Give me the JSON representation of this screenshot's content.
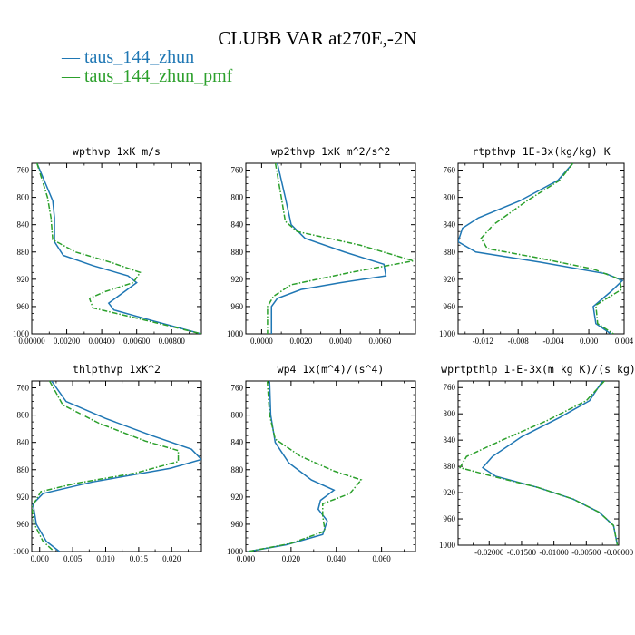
{
  "title": "CLUBB VAR at270E,-2N",
  "legend": [
    {
      "label": "taus_144_zhun",
      "color": "#1f77b4",
      "dash": "solid"
    },
    {
      "label": "taus_144_zhun_pmf",
      "color": "#2ca02c",
      "dash": "dashdot"
    }
  ],
  "chart_data": [
    {
      "type": "line",
      "title": "wpthvp  1xK m/s",
      "xlim": [
        0,
        0.0097
      ],
      "ylim": [
        750,
        1000
      ],
      "x_ticks": [
        "0.00000",
        "0.00200",
        "0.00400",
        "0.00600",
        "0.00800"
      ],
      "x_tick_values": [
        0,
        0.002,
        0.004,
        0.006,
        0.008
      ],
      "y_ticks": [
        "760",
        "800",
        "840",
        "880",
        "920",
        "960",
        "1000"
      ],
      "y_tick_values": [
        760,
        800,
        840,
        880,
        920,
        960,
        1000
      ],
      "series": [
        {
          "name": "taus_144_zhun",
          "color": "#1f77b4",
          "points": [
            [
              0.0003,
              750
            ],
            [
              0.0012,
              805
            ],
            [
              0.0013,
              830
            ],
            [
              0.0013,
              865
            ],
            [
              0.0018,
              885
            ],
            [
              0.0035,
              900
            ],
            [
              0.0055,
              915
            ],
            [
              0.006,
              925
            ],
            [
              0.0052,
              940
            ],
            [
              0.0044,
              955
            ],
            [
              0.0047,
              965
            ],
            [
              0.0068,
              980
            ],
            [
              0.0097,
              1000
            ]
          ]
        },
        {
          "name": "taus_144_zhun_pmf",
          "color": "#2ca02c",
          "points": [
            [
              0.0003,
              750
            ],
            [
              0.0009,
              800
            ],
            [
              0.0011,
              830
            ],
            [
              0.0012,
              862
            ],
            [
              0.0025,
              880
            ],
            [
              0.0045,
              895
            ],
            [
              0.0062,
              910
            ],
            [
              0.0058,
              925
            ],
            [
              0.0042,
              938
            ],
            [
              0.0033,
              948
            ],
            [
              0.0035,
              962
            ],
            [
              0.0065,
              980
            ],
            [
              0.0097,
              1000
            ]
          ]
        }
      ]
    },
    {
      "type": "line",
      "title": "wp2thvp  1xK m^2/s^2",
      "xlim": [
        -0.0008,
        0.0078
      ],
      "ylim": [
        750,
        1000
      ],
      "x_ticks": [
        "0.0000",
        "0.0020",
        "0.0040",
        "0.0060"
      ],
      "x_tick_values": [
        0,
        0.002,
        0.004,
        0.006
      ],
      "y_ticks": [
        "760",
        "800",
        "840",
        "880",
        "920",
        "960",
        "1000"
      ],
      "y_tick_values": [
        760,
        800,
        840,
        880,
        920,
        960,
        1000
      ],
      "series": [
        {
          "name": "taus_144_zhun",
          "color": "#1f77b4",
          "points": [
            [
              0.0008,
              750
            ],
            [
              0.0012,
              800
            ],
            [
              0.0015,
              840
            ],
            [
              0.0022,
              860
            ],
            [
              0.0042,
              880
            ],
            [
              0.0062,
              898
            ],
            [
              0.0063,
              915
            ],
            [
              0.004,
              925
            ],
            [
              0.002,
              935
            ],
            [
              0.0008,
              948
            ],
            [
              0.0005,
              960
            ],
            [
              0.0005,
              1000
            ]
          ]
        },
        {
          "name": "taus_144_zhun_pmf",
          "color": "#2ca02c",
          "points": [
            [
              0.0007,
              750
            ],
            [
              0.001,
              800
            ],
            [
              0.0012,
              835
            ],
            [
              0.0018,
              850
            ],
            [
              0.005,
              870
            ],
            [
              0.0077,
              893
            ],
            [
              0.0045,
              910
            ],
            [
              0.0015,
              928
            ],
            [
              0.0006,
              945
            ],
            [
              0.0003,
              960
            ],
            [
              0.0003,
              1000
            ]
          ]
        }
      ]
    },
    {
      "type": "line",
      "title": "rtpthvp  1E-3x(kg/kg) K",
      "xlim": [
        -0.0148,
        0.004
      ],
      "ylim": [
        750,
        1000
      ],
      "x_ticks": [
        "-0.012",
        "-0.008",
        "-0.004",
        "0.000",
        "0.004"
      ],
      "x_tick_values": [
        -0.012,
        -0.008,
        -0.004,
        0,
        0.004
      ],
      "y_ticks": [
        "760",
        "800",
        "840",
        "880",
        "920",
        "960",
        "1000"
      ],
      "y_tick_values": [
        760,
        800,
        840,
        880,
        920,
        960,
        1000
      ],
      "series": [
        {
          "name": "taus_144_zhun",
          "color": "#1f77b4",
          "points": [
            [
              -0.0018,
              750
            ],
            [
              -0.0035,
              775
            ],
            [
              -0.0078,
              805
            ],
            [
              -0.0125,
              830
            ],
            [
              -0.0143,
              845
            ],
            [
              -0.0148,
              865
            ],
            [
              -0.0128,
              880
            ],
            [
              -0.0055,
              895
            ],
            [
              0.002,
              912
            ],
            [
              0.0038,
              922
            ],
            [
              0.0025,
              938
            ],
            [
              0.0005,
              960
            ],
            [
              0.0008,
              985
            ],
            [
              0.0025,
              1000
            ]
          ]
        },
        {
          "name": "taus_144_zhun_pmf",
          "color": "#2ca02c",
          "points": [
            [
              -0.0018,
              750
            ],
            [
              -0.0033,
              775
            ],
            [
              -0.007,
              805
            ],
            [
              -0.0108,
              840
            ],
            [
              -0.0122,
              860
            ],
            [
              -0.0115,
              875
            ],
            [
              -0.006,
              888
            ],
            [
              0.0005,
              905
            ],
            [
              0.0035,
              920
            ],
            [
              0.0037,
              935
            ],
            [
              0.0008,
              958
            ],
            [
              0.001,
              985
            ],
            [
              0.0028,
              1000
            ]
          ]
        }
      ]
    },
    {
      "type": "line",
      "title": "thlpthvp  1xK^2",
      "xlim": [
        -0.0012,
        0.0245
      ],
      "ylim": [
        750,
        1000
      ],
      "x_ticks": [
        "0.000",
        "0.005",
        "0.010",
        "0.015",
        "0.020"
      ],
      "x_tick_values": [
        0,
        0.005,
        0.01,
        0.015,
        0.02
      ],
      "y_ticks": [
        "760",
        "800",
        "840",
        "880",
        "920",
        "960",
        "1000"
      ],
      "y_tick_values": [
        760,
        800,
        840,
        880,
        920,
        960,
        1000
      ],
      "series": [
        {
          "name": "taus_144_zhun",
          "color": "#1f77b4",
          "points": [
            [
              0.0018,
              750
            ],
            [
              0.004,
              780
            ],
            [
              0.01,
              805
            ],
            [
              0.017,
              830
            ],
            [
              0.023,
              850
            ],
            [
              0.0245,
              865
            ],
            [
              0.0198,
              878
            ],
            [
              0.008,
              898
            ],
            [
              0.0005,
              915
            ],
            [
              -0.001,
              930
            ],
            [
              -0.0005,
              960
            ],
            [
              0.001,
              985
            ],
            [
              0.003,
              1000
            ]
          ]
        },
        {
          "name": "taus_144_zhun_pmf",
          "color": "#2ca02c",
          "points": [
            [
              0.0015,
              750
            ],
            [
              0.0035,
              785
            ],
            [
              0.009,
              812
            ],
            [
              0.016,
              838
            ],
            [
              0.021,
              852
            ],
            [
              0.021,
              868
            ],
            [
              0.0145,
              885
            ],
            [
              0.0055,
              900
            ],
            [
              0.0002,
              912
            ],
            [
              -0.0012,
              935
            ],
            [
              -0.0008,
              960
            ],
            [
              0.0005,
              985
            ],
            [
              0.0022,
              1000
            ]
          ]
        }
      ]
    },
    {
      "type": "line",
      "title": "wp4  1x(m^4)/(s^4)",
      "xlim": [
        0,
        0.075
      ],
      "ylim": [
        750,
        1000
      ],
      "x_ticks": [
        "0.000",
        "0.020",
        "0.040",
        "0.060"
      ],
      "x_tick_values": [
        0,
        0.02,
        0.04,
        0.06
      ],
      "y_ticks": [
        "760",
        "800",
        "840",
        "880",
        "920",
        "960",
        "1000"
      ],
      "y_tick_values": [
        760,
        800,
        840,
        880,
        920,
        960,
        1000
      ],
      "series": [
        {
          "name": "taus_144_zhun",
          "color": "#1f77b4",
          "points": [
            [
              0.0105,
              750
            ],
            [
              0.011,
              800
            ],
            [
              0.013,
              840
            ],
            [
              0.019,
              870
            ],
            [
              0.029,
              895
            ],
            [
              0.039,
              910
            ],
            [
              0.033,
              925
            ],
            [
              0.032,
              938
            ],
            [
              0.036,
              955
            ],
            [
              0.034,
              975
            ],
            [
              0.018,
              990
            ],
            [
              0.001,
              1000
            ]
          ]
        },
        {
          "name": "taus_144_zhun_pmf",
          "color": "#2ca02c",
          "points": [
            [
              0.0095,
              750
            ],
            [
              0.0105,
              800
            ],
            [
              0.013,
              835
            ],
            [
              0.024,
              860
            ],
            [
              0.039,
              882
            ],
            [
              0.051,
              895
            ],
            [
              0.046,
              915
            ],
            [
              0.034,
              930
            ],
            [
              0.034,
              948
            ],
            [
              0.035,
              970
            ],
            [
              0.02,
              988
            ],
            [
              0.001,
              1000
            ]
          ]
        }
      ]
    },
    {
      "type": "line",
      "title": "wprtpthlp  1-E-3x(m kg K)/(s kg)",
      "xlim": [
        -0.0248,
        0
      ],
      "ylim": [
        750,
        1000
      ],
      "x_ticks": [
        "-0.02000",
        "-0.01500",
        "-0.01000",
        "-0.00500",
        "-0.00000"
      ],
      "x_tick_values": [
        -0.02,
        -0.015,
        -0.01,
        -0.005,
        0
      ],
      "y_ticks": [
        "760",
        "800",
        "840",
        "880",
        "920",
        "960",
        "1000"
      ],
      "y_tick_values": [
        760,
        800,
        840,
        880,
        920,
        960,
        1000
      ],
      "series": [
        {
          "name": "taus_144_zhun",
          "color": "#1f77b4",
          "points": [
            [
              -0.0025,
              750
            ],
            [
              -0.0045,
              780
            ],
            [
              -0.009,
              805
            ],
            [
              -0.015,
              835
            ],
            [
              -0.0195,
              865
            ],
            [
              -0.021,
              882
            ],
            [
              -0.019,
              895
            ],
            [
              -0.0125,
              912
            ],
            [
              -0.007,
              930
            ],
            [
              -0.003,
              950
            ],
            [
              -0.0008,
              970
            ],
            [
              -0.0002,
              1000
            ]
          ]
        },
        {
          "name": "taus_144_zhun_pmf",
          "color": "#2ca02c",
          "points": [
            [
              -0.0022,
              750
            ],
            [
              -0.005,
              780
            ],
            [
              -0.011,
              810
            ],
            [
              -0.018,
              840
            ],
            [
              -0.0235,
              865
            ],
            [
              -0.0245,
              882
            ],
            [
              -0.0195,
              895
            ],
            [
              -0.0125,
              912
            ],
            [
              -0.007,
              930
            ],
            [
              -0.003,
              950
            ],
            [
              -0.0008,
              970
            ],
            [
              -0.0002,
              1000
            ]
          ]
        }
      ]
    }
  ]
}
